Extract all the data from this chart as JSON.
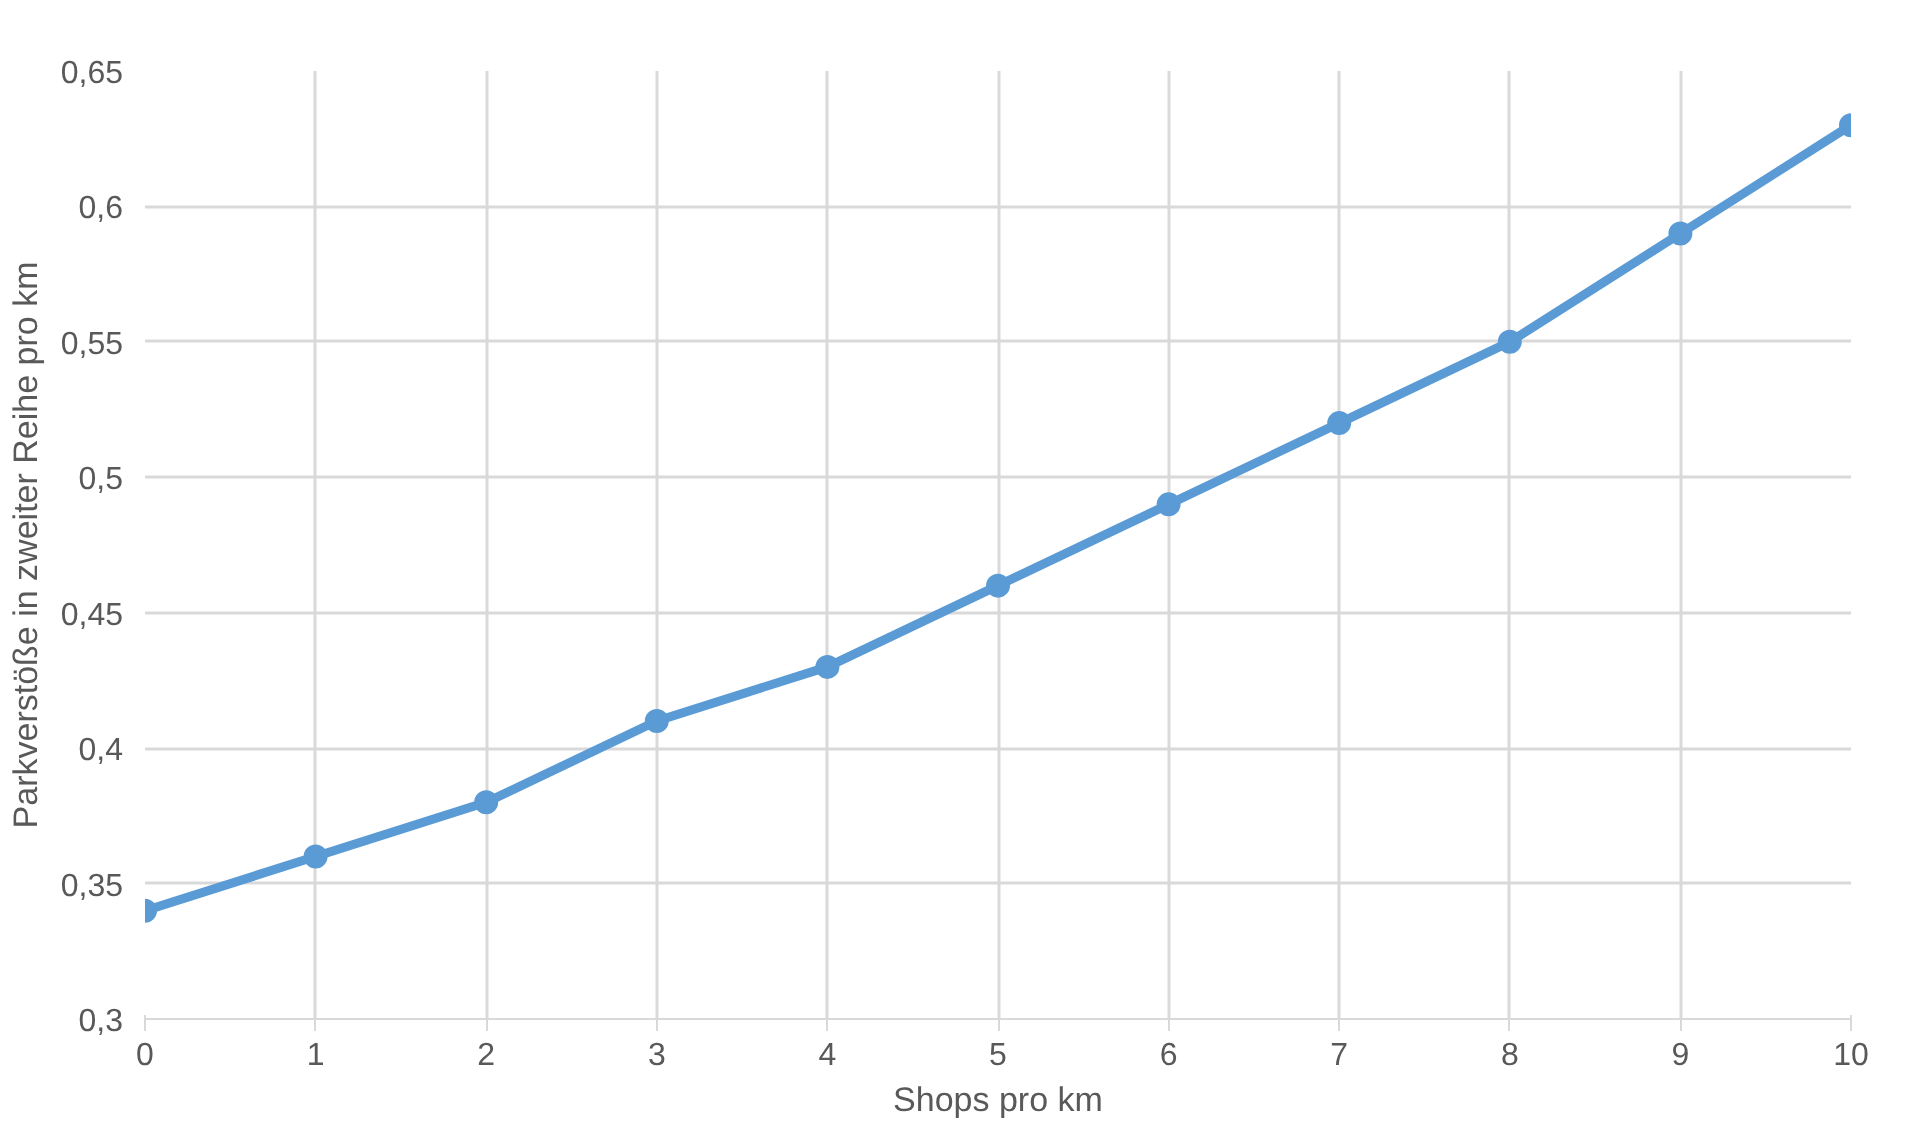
{
  "chart_data": {
    "type": "line",
    "xlabel": "Shops pro km",
    "ylabel": "Parkverstöße in zweiter Reihe pro km",
    "x": [
      0,
      1,
      2,
      3,
      4,
      5,
      6,
      7,
      8,
      9,
      10
    ],
    "series": [
      {
        "color": "#5b9bd5",
        "values": [
          0.34,
          0.36,
          0.38,
          0.41,
          0.43,
          0.46,
          0.49,
          0.52,
          0.55,
          0.59,
          0.63
        ]
      }
    ],
    "xlim": [
      0,
      10
    ],
    "ylim": [
      0.3,
      0.65
    ],
    "xticks": [
      0,
      1,
      2,
      3,
      4,
      5,
      6,
      7,
      8,
      9,
      10
    ],
    "yticks": [
      {
        "value": 0.3,
        "label": "0,3"
      },
      {
        "value": 0.35,
        "label": "0,35"
      },
      {
        "value": 0.4,
        "label": "0,4"
      },
      {
        "value": 0.45,
        "label": "0,45"
      },
      {
        "value": 0.5,
        "label": "0,5"
      },
      {
        "value": 0.55,
        "label": "0,55"
      },
      {
        "value": 0.6,
        "label": "0,6"
      },
      {
        "value": 0.65,
        "label": "0,65"
      }
    ],
    "grid": true,
    "marker": "circle",
    "line_style": "solid"
  }
}
